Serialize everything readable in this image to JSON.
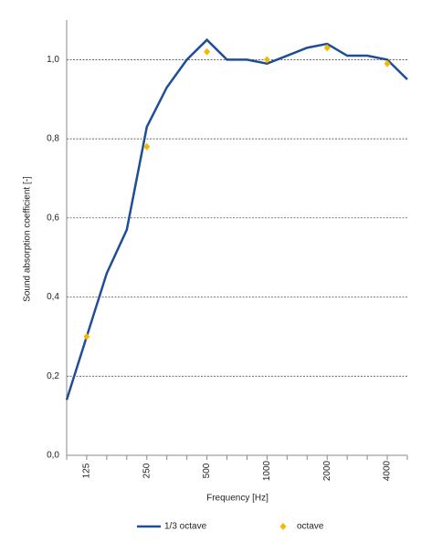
{
  "chart_data": {
    "type": "line",
    "x_label": "Frequency [Hz]",
    "y_label": "Sound absorption coefficient [-]",
    "categories": [
      null,
      "125",
      null,
      null,
      "250",
      null,
      null,
      "500",
      null,
      null,
      "1000",
      null,
      null,
      "2000",
      null,
      null,
      "4000",
      null
    ],
    "series": [
      {
        "name": "1/3 octave",
        "color": "#1f4e96",
        "style": "line",
        "values": [
          0.14,
          0.3,
          0.46,
          0.57,
          0.83,
          0.93,
          1.0,
          1.05,
          1.0,
          1.0,
          0.99,
          1.01,
          1.03,
          1.04,
          1.01,
          1.01,
          1.0,
          0.95
        ]
      },
      {
        "name": "octave",
        "color": "#f5b800",
        "style": "marker",
        "values": [
          null,
          0.3,
          null,
          null,
          0.78,
          null,
          null,
          1.02,
          null,
          null,
          1.0,
          null,
          null,
          1.03,
          null,
          null,
          0.99,
          null
        ]
      }
    ],
    "ylim": [
      0,
      1.1
    ],
    "yticks": [
      {
        "value": 0,
        "label": "0,0"
      },
      {
        "value": 0.2,
        "label": "0,2"
      },
      {
        "value": 0.4,
        "label": "0,4"
      },
      {
        "value": 0.6,
        "label": "0,6"
      },
      {
        "value": 0.8,
        "label": "0,8"
      },
      {
        "value": 1.0,
        "label": "1,0"
      }
    ],
    "grid": true,
    "legend": "bottom"
  }
}
